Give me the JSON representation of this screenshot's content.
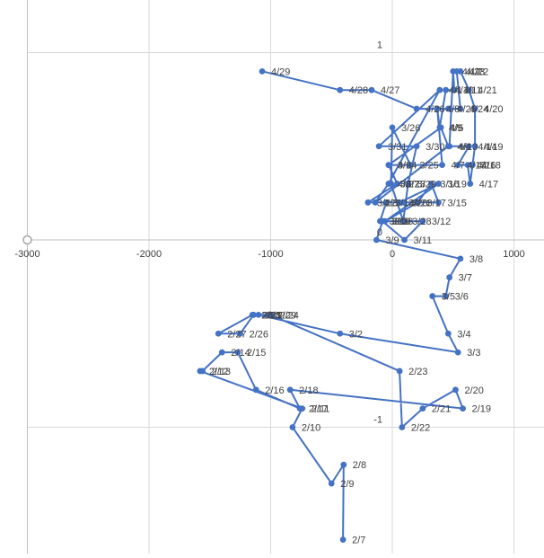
{
  "chart_data": {
    "type": "scatter",
    "mode": "lines+markers",
    "title": "",
    "xlabel": "",
    "ylabel": "",
    "xlim": [
      -3000,
      1200
    ],
    "ylim": [
      -1.7,
      1.25
    ],
    "x_ticks": [
      -3000,
      -2000,
      -1000,
      0,
      1000
    ],
    "x_tick_labels": [
      "-3000",
      "-2000",
      "-1000",
      "0",
      "1000"
    ],
    "y_ticks": [
      -1,
      0,
      1
    ],
    "y_tick_labels": [
      "-1",
      "0",
      "1"
    ],
    "grid": true,
    "legend": "none",
    "color": "#4472C4",
    "series": [
      {
        "points": [
          {
            "label": "2/7",
            "x": -405,
            "y": -1.6
          },
          {
            "label": "2/8",
            "x": -400,
            "y": -1.2
          },
          {
            "label": "2/9",
            "x": -500,
            "y": -1.3
          },
          {
            "label": "2/10",
            "x": -820,
            "y": -1.0
          },
          {
            "label": "2/11",
            "x": -740,
            "y": -0.9
          },
          {
            "label": "2/12",
            "x": -1580,
            "y": -0.7
          },
          {
            "label": "2/13",
            "x": -1560,
            "y": -0.7
          },
          {
            "label": "2/14",
            "x": -1400,
            "y": -0.6
          },
          {
            "label": "2/15",
            "x": -1270,
            "y": -0.6
          },
          {
            "label": "2/16",
            "x": -1120,
            "y": -0.8
          },
          {
            "label": "2/17",
            "x": -760,
            "y": -0.9
          },
          {
            "label": "2/18",
            "x": -840,
            "y": -0.8
          },
          {
            "label": "2/19",
            "x": 580,
            "y": -0.9
          },
          {
            "label": "2/20",
            "x": 520,
            "y": -0.8
          },
          {
            "label": "2/21",
            "x": 250,
            "y": -0.9
          },
          {
            "label": "2/22",
            "x": 80,
            "y": -1.0
          },
          {
            "label": "2/23",
            "x": 60,
            "y": -0.7
          },
          {
            "label": "2/24",
            "x": -1000,
            "y": -0.4
          },
          {
            "label": "2/25",
            "x": -1140,
            "y": -0.4
          },
          {
            "label": "2/26",
            "x": -1250,
            "y": -0.5
          },
          {
            "label": "2/27",
            "x": -1430,
            "y": -0.5
          },
          {
            "label": "2/28",
            "x": -1150,
            "y": -0.4
          },
          {
            "label": "2/29",
            "x": -1020,
            "y": -0.4
          },
          {
            "label": "3/1",
            "x": -1100,
            "y": -0.4
          },
          {
            "label": "3/2",
            "x": -430,
            "y": -0.5
          },
          {
            "label": "3/3",
            "x": 540,
            "y": -0.6
          },
          {
            "label": "3/4",
            "x": 460,
            "y": -0.5
          },
          {
            "label": "3/5",
            "x": 330,
            "y": -0.3
          },
          {
            "label": "3/6",
            "x": 440,
            "y": -0.3
          },
          {
            "label": "3/7",
            "x": 470,
            "y": -0.2
          },
          {
            "label": "3/8",
            "x": 560,
            "y": -0.1
          },
          {
            "label": "3/9",
            "x": -130,
            "y": 0.0
          },
          {
            "label": "3/10",
            "x": -80,
            "y": 0.1
          },
          {
            "label": "3/11",
            "x": 100,
            "y": 0.0
          },
          {
            "label": "3/12",
            "x": 250,
            "y": 0.1
          },
          {
            "label": "3/13",
            "x": -100,
            "y": 0.1
          },
          {
            "label": "3/14",
            "x": -50,
            "y": 0.2
          },
          {
            "label": "3/15",
            "x": 380,
            "y": 0.2
          },
          {
            "label": "3/16",
            "x": 320,
            "y": 0.3
          },
          {
            "label": "3/17",
            "x": 210,
            "y": 0.2
          },
          {
            "label": "3/18",
            "x": -60,
            "y": 0.1
          },
          {
            "label": "3/19",
            "x": 380,
            "y": 0.3
          },
          {
            "label": "3/20",
            "x": 60,
            "y": 0.2
          },
          {
            "label": "3/21",
            "x": 90,
            "y": 0.2
          },
          {
            "label": "3/22",
            "x": -200,
            "y": 0.2
          },
          {
            "label": "3/23",
            "x": 40,
            "y": 0.3
          },
          {
            "label": "3/24",
            "x": -30,
            "y": 0.4
          },
          {
            "label": "3/25",
            "x": 150,
            "y": 0.4
          },
          {
            "label": "3/26",
            "x": 0,
            "y": 0.6
          },
          {
            "label": "3/27",
            "x": -10,
            "y": 0.3
          },
          {
            "label": "3/28",
            "x": 90,
            "y": 0.1
          },
          {
            "label": "3/29",
            "x": 130,
            "y": 0.3
          },
          {
            "label": "3/30",
            "x": 200,
            "y": 0.5
          },
          {
            "label": "3/31",
            "x": -110,
            "y": 0.5
          },
          {
            "label": "4/1",
            "x": 390,
            "y": 0.8
          },
          {
            "label": "4/2",
            "x": -30,
            "y": 0.3
          },
          {
            "label": "4/3",
            "x": -140,
            "y": 0.2
          },
          {
            "label": "4/4",
            "x": 460,
            "y": 0.5
          },
          {
            "label": "4/5",
            "x": 400,
            "y": 0.6
          },
          {
            "label": "4/6",
            "x": -30,
            "y": 0.4
          },
          {
            "label": "4/7",
            "x": 410,
            "y": 0.4
          },
          {
            "label": "4/8",
            "x": 370,
            "y": 0.7
          },
          {
            "label": "4/9",
            "x": 390,
            "y": 0.6
          },
          {
            "label": "4/10",
            "x": 440,
            "y": 0.8
          },
          {
            "label": "4/11",
            "x": 510,
            "y": 0.8
          },
          {
            "label": "4/12",
            "x": 500,
            "y": 0.9
          },
          {
            "label": "4/13",
            "x": 470,
            "y": 0.5
          },
          {
            "label": "4/14",
            "x": 630,
            "y": 0.5
          },
          {
            "label": "4/15",
            "x": 540,
            "y": 0.4
          },
          {
            "label": "4/16",
            "x": 620,
            "y": 0.4
          },
          {
            "label": "4/17",
            "x": 640,
            "y": 0.3
          },
          {
            "label": "4/18",
            "x": 660,
            "y": 0.4
          },
          {
            "label": "4/19",
            "x": 680,
            "y": 0.5
          },
          {
            "label": "4/20",
            "x": 680,
            "y": 0.7
          },
          {
            "label": "4/21",
            "x": 630,
            "y": 0.8
          },
          {
            "label": "4/22",
            "x": 560,
            "y": 0.9
          },
          {
            "label": "4/23",
            "x": 530,
            "y": 0.9
          },
          {
            "label": "4/24",
            "x": 560,
            "y": 0.7
          },
          {
            "label": "4/25",
            "x": 460,
            "y": 0.7
          },
          {
            "label": "4/26",
            "x": 200,
            "y": 0.7
          },
          {
            "label": "4/27",
            "x": -170,
            "y": 0.8
          },
          {
            "label": "4/28",
            "x": -430,
            "y": 0.8
          },
          {
            "label": "4/29",
            "x": -1070,
            "y": 0.9
          }
        ]
      }
    ]
  }
}
